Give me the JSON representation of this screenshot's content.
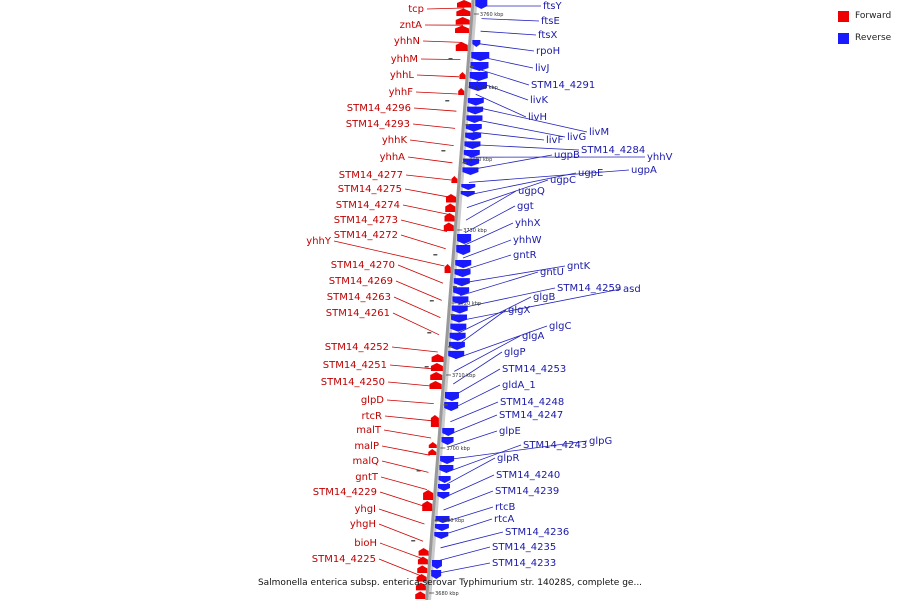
{
  "colors": {
    "forward": "#ee0000",
    "reverse": "#1a1aff",
    "backbone": "#999999",
    "label_forward": "#c00000",
    "label_reverse": "#1a1aaa"
  },
  "legend": [
    {
      "label": "Forward",
      "color": "#ee0000"
    },
    {
      "label": "Reverse",
      "color": "#1a1aff"
    }
  ],
  "caption": "Salmonella enterica subsp. enterica serovar Typhimurium str. 14028S, complete ge...",
  "scale_ticks": [
    "3760 kbp",
    "3750 kbp",
    "3740 kbp",
    "3730 kbp",
    "3720 kbp",
    "3710 kbp",
    "3700 kbp",
    "3690 kbp",
    "3680 kbp"
  ],
  "forward_genes": [
    "tcp",
    "zntA",
    "yhhN",
    "yhhM",
    "yhhL",
    "yhhF",
    "STM14_4296",
    "STM14_4293",
    "yhhK",
    "yhhA",
    "STM14_4277",
    "STM14_4275",
    "STM14_4274",
    "STM14_4273",
    "STM14_4272",
    "yhhY",
    "STM14_4270",
    "STM14_4269",
    "STM14_4263",
    "STM14_4261",
    "STM14_4252",
    "STM14_4251",
    "STM14_4250",
    "glpD",
    "rtcR",
    "malT",
    "malP",
    "malQ",
    "gntT",
    "STM14_4229",
    "yhgI",
    "yhgH",
    "bioH",
    "STM14_4225"
  ],
  "reverse_genes": [
    "ftsY",
    "ftsE",
    "ftsX",
    "rpoH",
    "livJ",
    "STM14_4291",
    "livK",
    "livH",
    "livM",
    "livG",
    "livF",
    "STM14_4284",
    "yhhV",
    "ugpB",
    "ugpA",
    "ugpE",
    "ugpC",
    "ugpQ",
    "ggt",
    "yhhX",
    "yhhW",
    "gntR",
    "gntK",
    "gntU",
    "STM14_4259",
    "asd",
    "glgB",
    "glgX",
    "glgC",
    "glgA",
    "glgP",
    "STM14_4253",
    "gldA_1",
    "STM14_4248",
    "STM14_4247",
    "glpE",
    "glpG",
    "STM14_4243",
    "glpR",
    "STM14_4240",
    "STM14_4239",
    "rtcB",
    "rtcA",
    "STM14_4236",
    "STM14_4235",
    "STM14_4233"
  ]
}
